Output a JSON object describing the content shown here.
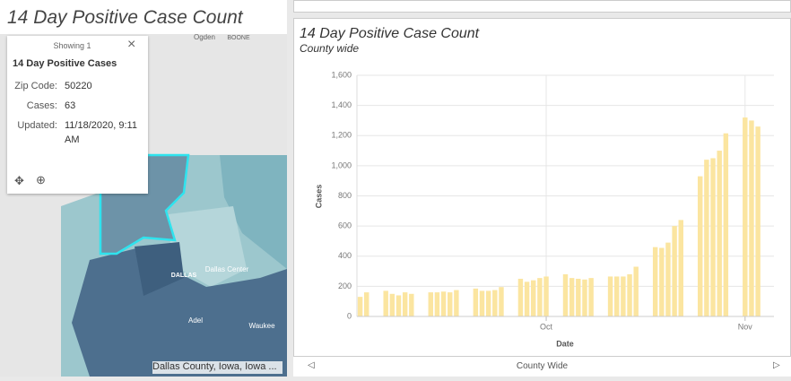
{
  "header": {
    "title": "14 Day Positive Case Count"
  },
  "popup": {
    "showing": "Showing 1",
    "title": "14 Day Positive Cases",
    "fields": [
      {
        "label": "Zip Code:",
        "value": "50220"
      },
      {
        "label": "Cases:",
        "value": "63"
      },
      {
        "label": "Updated:",
        "value": "11/18/2020, 9:11 AM"
      }
    ]
  },
  "map": {
    "labels": [
      "Ogden",
      "BOONE",
      "Dallas Center",
      "DALLAS",
      "Adel",
      "Waukee"
    ],
    "attribution": "Dallas County, Iowa, Iowa ..."
  },
  "chart_data": {
    "type": "bar",
    "title": "14 Day Positive Case Count",
    "subtitle": "County wide",
    "x_label": "Date",
    "y_label": "Cases",
    "color": "#fbe5a0",
    "grid": true,
    "categories": [
      null,
      null,
      null,
      null,
      null,
      null,
      null,
      null,
      null,
      null,
      null,
      null,
      null,
      null,
      null,
      null,
      null,
      null,
      null,
      null,
      null,
      null,
      null,
      null,
      null,
      null,
      null,
      null,
      null,
      "Oct",
      null,
      null,
      null,
      null,
      null,
      null,
      null,
      null,
      null,
      null,
      null,
      null,
      null,
      null,
      null,
      null,
      null,
      null,
      null,
      null,
      null,
      null,
      null,
      null,
      null,
      null,
      null,
      null,
      null,
      null,
      "Nov",
      null,
      null,
      null,
      null
    ],
    "values": [
      130,
      160,
      null,
      null,
      170,
      150,
      140,
      160,
      150,
      null,
      null,
      160,
      160,
      165,
      160,
      175,
      null,
      null,
      185,
      170,
      170,
      175,
      195,
      null,
      null,
      250,
      230,
      240,
      255,
      265,
      null,
      null,
      280,
      255,
      250,
      245,
      255,
      null,
      null,
      265,
      265,
      265,
      280,
      330,
      null,
      null,
      460,
      455,
      490,
      600,
      640,
      null,
      null,
      930,
      1040,
      1050,
      1100,
      1215,
      null,
      null,
      1320,
      1300,
      1260,
      null,
      null
    ],
    "ylim": [
      0,
      1600
    ],
    "yticks": [
      0,
      200,
      400,
      600,
      800,
      {
        "value": 1000,
        "label": "1,000"
      },
      {
        "value": 1200,
        "label": "1,200"
      },
      {
        "value": 1400,
        "label": "1,400"
      },
      {
        "value": 1600,
        "label": "1,600"
      }
    ]
  },
  "footer": {
    "label": "County Wide"
  }
}
